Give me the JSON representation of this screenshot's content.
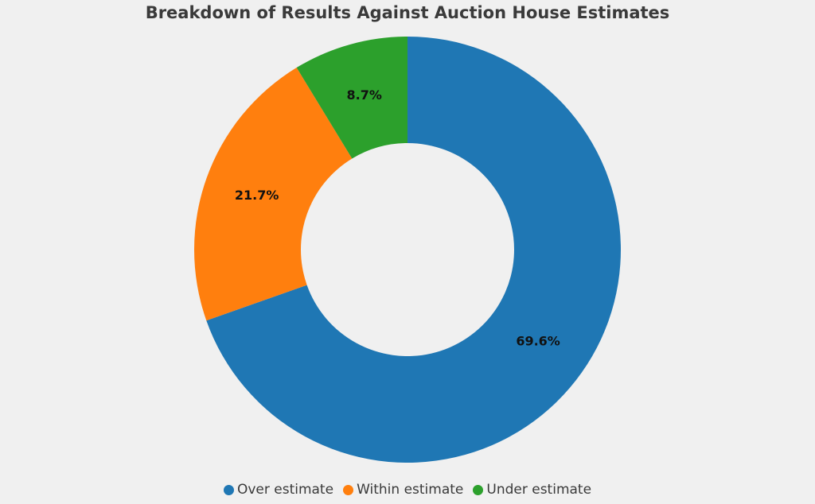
{
  "chart_data": {
    "type": "pie",
    "style": "donut",
    "title": "Breakdown of Results Against Auction House Estimates",
    "legend_position": "bottom",
    "slices": [
      {
        "name": "Over estimate",
        "value": 69.6,
        "label": "69.6%",
        "color": "#1f77b4"
      },
      {
        "name": "Within estimate",
        "value": 21.7,
        "label": "21.7%",
        "color": "#ff7f0e"
      },
      {
        "name": "Under estimate",
        "value": 8.7,
        "label": "8.7%",
        "color": "#2ca02c"
      }
    ]
  }
}
